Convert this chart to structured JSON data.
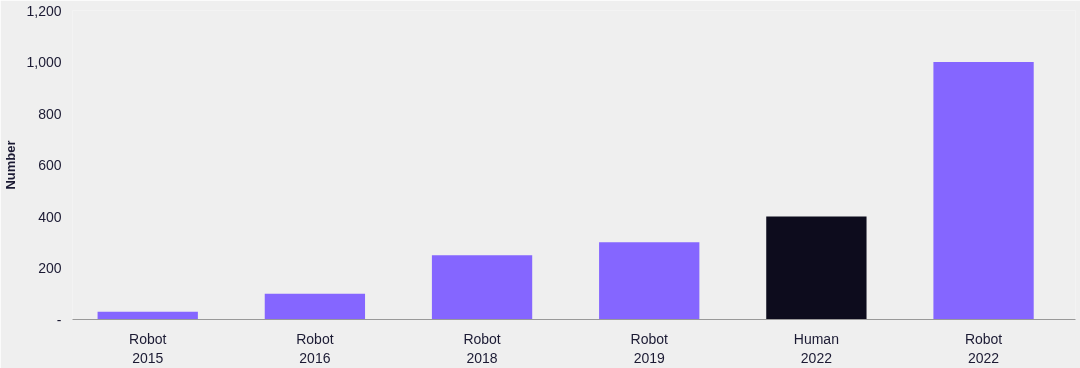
{
  "chart_data": {
    "type": "bar",
    "ylabel": "Number",
    "categories": [
      "Robot\n2015",
      "Robot\n2016",
      "Robot\n2018",
      "Robot\n2019",
      "Human\n2022",
      "Robot\n2022"
    ],
    "values": [
      30,
      100,
      250,
      300,
      400,
      1000
    ],
    "colors": [
      "#8566ff",
      "#8566ff",
      "#8566ff",
      "#8566ff",
      "#0d0c1d",
      "#8566ff"
    ],
    "ylim": [
      0,
      1200
    ],
    "yticks": [
      {
        "value": 0,
        "label": "-"
      },
      {
        "value": 200,
        "label": "200"
      },
      {
        "value": 400,
        "label": "400"
      },
      {
        "value": 600,
        "label": "600"
      },
      {
        "value": 800,
        "label": "800"
      },
      {
        "value": 1000,
        "label": "1,000"
      },
      {
        "value": 1200,
        "label": "1,200"
      }
    ],
    "grid": false
  }
}
